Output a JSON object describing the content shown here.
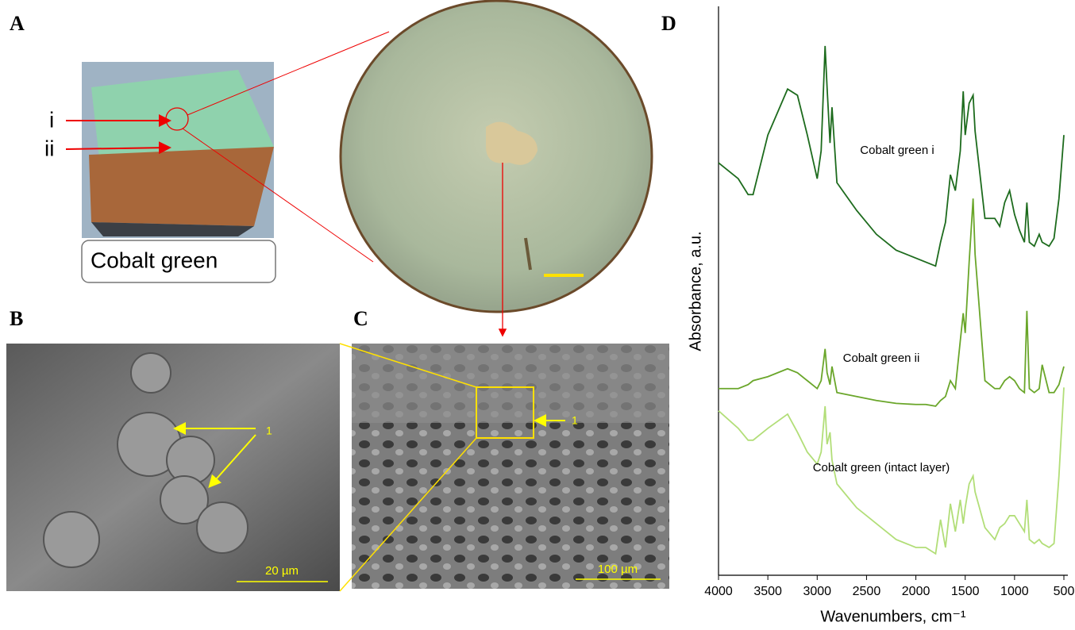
{
  "panels": {
    "a": {
      "label": "A",
      "pointer_1": "i",
      "pointer_2": "ii",
      "caption": "Cobalt green"
    },
    "b": {
      "label": "B",
      "marker": "1",
      "scale_bar": "20 µm"
    },
    "c": {
      "label": "C",
      "marker": "1",
      "scale_bar": "100 µm"
    },
    "d": {
      "label": "D"
    }
  },
  "chart_data": {
    "type": "line",
    "x_label": "Wavenumbers, cm⁻¹",
    "y_label": "Absorbance, a.u.",
    "xlim": [
      4000,
      500
    ],
    "xticks": [
      4000,
      3500,
      3000,
      2500,
      2000,
      1500,
      1000,
      500
    ],
    "ylim": [
      0,
      10
    ],
    "x": [
      4000,
      3800,
      3700,
      3650,
      3500,
      3300,
      3200,
      3100,
      3000,
      2960,
      2920,
      2900,
      2870,
      2850,
      2800,
      2600,
      2400,
      2200,
      2000,
      1900,
      1800,
      1750,
      1700,
      1650,
      1600,
      1550,
      1520,
      1500,
      1460,
      1420,
      1400,
      1300,
      1200,
      1150,
      1100,
      1050,
      1000,
      950,
      900,
      875,
      850,
      800,
      750,
      720,
      650,
      600,
      550,
      500
    ],
    "series": [
      {
        "name": "Cobalt green i",
        "color": "#1d6b1d",
        "values": [
          7.27,
          6.99,
          6.71,
          6.71,
          7.76,
          8.57,
          8.46,
          7.76,
          6.99,
          7.48,
          9.33,
          8.6,
          7.62,
          8.25,
          6.92,
          6.43,
          6.01,
          5.73,
          5.59,
          5.52,
          5.45,
          5.87,
          6.22,
          7.06,
          6.78,
          7.48,
          8.53,
          7.76,
          8.32,
          8.46,
          7.83,
          6.29,
          6.29,
          6.15,
          6.57,
          6.78,
          6.36,
          6.08,
          5.87,
          6.57,
          5.87,
          5.8,
          6.01,
          5.87,
          5.8,
          5.94,
          6.64,
          7.76
        ]
      },
      {
        "name": "Cobalt green ii",
        "color": "#6aa62a",
        "values": [
          3.29,
          3.29,
          3.36,
          3.43,
          3.5,
          3.64,
          3.57,
          3.43,
          3.29,
          3.43,
          3.99,
          3.57,
          3.36,
          3.68,
          3.22,
          3.15,
          3.08,
          3.03,
          3.01,
          3.01,
          2.98,
          3.08,
          3.15,
          3.43,
          3.29,
          4.13,
          4.62,
          4.27,
          5.52,
          6.64,
          5.66,
          3.43,
          3.29,
          3.29,
          3.43,
          3.5,
          3.43,
          3.29,
          3.22,
          4.66,
          3.29,
          3.22,
          3.29,
          3.71,
          3.22,
          3.22,
          3.36,
          3.68
        ]
      },
      {
        "name": "Cobalt green (intact layer)",
        "color": "#b2de78",
        "values": [
          2.9,
          2.59,
          2.38,
          2.38,
          2.59,
          2.84,
          2.52,
          2.17,
          1.96,
          2.17,
          2.98,
          2.31,
          2.52,
          2.03,
          1.61,
          1.19,
          0.91,
          0.63,
          0.49,
          0.49,
          0.38,
          0.98,
          0.49,
          1.26,
          0.77,
          1.33,
          0.91,
          1.19,
          1.61,
          1.75,
          1.47,
          0.84,
          0.63,
          0.84,
          0.91,
          1.05,
          1.05,
          0.91,
          0.77,
          1.33,
          0.63,
          0.56,
          0.63,
          0.56,
          0.49,
          0.56,
          1.75,
          3.31
        ]
      }
    ]
  }
}
